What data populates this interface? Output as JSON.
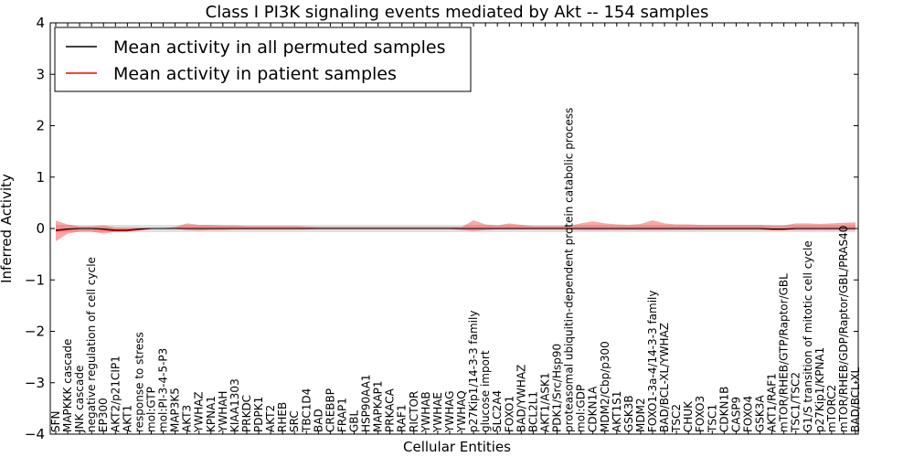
{
  "chart_data": {
    "type": "line",
    "title": "Class I PI3K signaling events mediated by Akt -- 154 samples",
    "xlabel": "Cellular Entities",
    "ylabel": "Inferred Activity",
    "ylim": [
      -4,
      4
    ],
    "yticks": [
      -4,
      -3,
      -2,
      -1,
      0,
      1,
      2,
      3,
      4
    ],
    "grid": false,
    "legend_position": "top-left",
    "categories": [
      "SFN",
      "MAPKKK cascade",
      "JNK cascade",
      "negative regulation of cell cycle",
      "EP300",
      "AKT2/p21CIP1",
      "AKT1",
      "response to stress",
      "mol:GTP",
      "mol:PI-3-4-5-P3",
      "MAP3K5",
      "AKT3",
      "YWHAZ",
      "KPNA1",
      "YWHAH",
      "KIAA1303",
      "PRKDC",
      "PDPK1",
      "AKT2",
      "RHEB",
      "SRC",
      "TBC1D4",
      "BAD",
      "CREBBP",
      "FRAP1",
      "GBL",
      "HSP90AA1",
      "MAPKAP1",
      "PRKACA",
      "RAF1",
      "RICTOR",
      "YWHAB",
      "YWHAE",
      "YWHAG",
      "YWHAQ",
      "p27Kip1/14-3-3 family",
      "glucose import",
      "SLC2A4",
      "FOXO1",
      "BAD/YWHAZ",
      "BCL2L1",
      "AKT1/ASK1",
      "PDK1/Src/Hsp90",
      "proteasomal ubiquitin-dependent protein catabolic process",
      "mol:GDP",
      "CDKN1A",
      "MDM2/Cbp/p300",
      "AKT1S1",
      "GSK3B",
      "MDM2",
      "FOXO1-3a-4/14-3-3 family",
      "BAD/BCL-XL/YWHAZ",
      "TSC2",
      "CHUK",
      "FOXO3",
      "TSC1",
      "CDKN1B",
      "CASP9",
      "FOXO4",
      "GSK3A",
      "AKT1/RAF1",
      "mTOR/RHEB/GTP/Raptor/GBL",
      "TSC1/TSC2",
      "G1/S transition of mitotic cell cycle",
      "p27Kip1/KPNA1",
      "mTORC2",
      "mTOR/RHEB/GDP/Raptor/GBL/PRAS40",
      "BAD/BCL-XL"
    ],
    "series": [
      {
        "name": "Mean activity in all permuted samples",
        "color": "#000000",
        "values": [
          -0.03,
          -0.01,
          0.0,
          0.0,
          -0.01,
          -0.03,
          -0.03,
          -0.01,
          0.0,
          0.0,
          0.0,
          0.0,
          0.0,
          0.0,
          0.0,
          0.0,
          0.0,
          0.0,
          0.0,
          0.0,
          0.0,
          0.0,
          0.0,
          0.0,
          0.0,
          0.0,
          0.0,
          0.0,
          0.0,
          0.0,
          0.0,
          0.0,
          0.0,
          0.0,
          0.0,
          0.0,
          0.0,
          0.0,
          0.0,
          0.0,
          0.0,
          0.0,
          0.0,
          0.0,
          0.0,
          0.0,
          0.0,
          0.0,
          0.0,
          0.0,
          0.0,
          0.0,
          0.0,
          0.0,
          0.0,
          0.0,
          0.0,
          0.0,
          0.0,
          0.0,
          -0.01,
          -0.01,
          0.0,
          0.0,
          0.0,
          0.0,
          0.0,
          0.0
        ],
        "band_low": [
          -0.07,
          -0.07,
          -0.07,
          -0.07,
          -0.07,
          -0.07,
          -0.07,
          -0.07,
          -0.07,
          -0.07,
          -0.07,
          -0.07,
          -0.07,
          -0.07,
          -0.07,
          -0.07,
          -0.07,
          -0.07,
          -0.07,
          -0.07,
          -0.07,
          -0.07,
          -0.07,
          -0.07,
          -0.07,
          -0.07,
          -0.07,
          -0.07,
          -0.07,
          -0.07,
          -0.07,
          -0.07,
          -0.07,
          -0.07,
          -0.07,
          -0.07,
          -0.07,
          -0.07,
          -0.07,
          -0.07,
          -0.07,
          -0.07,
          -0.07,
          -0.07,
          -0.07,
          -0.07,
          -0.07,
          -0.07,
          -0.07,
          -0.07,
          -0.07,
          -0.07,
          -0.07,
          -0.07,
          -0.07,
          -0.07,
          -0.07,
          -0.07,
          -0.07,
          -0.07,
          -0.07,
          -0.07,
          -0.07,
          -0.07,
          -0.07,
          -0.07,
          -0.07,
          -0.07
        ],
        "band_high": [
          0.07,
          0.07,
          0.07,
          0.07,
          0.07,
          0.07,
          0.07,
          0.07,
          0.07,
          0.07,
          0.07,
          0.07,
          0.07,
          0.07,
          0.07,
          0.07,
          0.07,
          0.07,
          0.07,
          0.07,
          0.07,
          0.07,
          0.07,
          0.07,
          0.07,
          0.07,
          0.07,
          0.07,
          0.07,
          0.07,
          0.07,
          0.07,
          0.07,
          0.07,
          0.07,
          0.07,
          0.07,
          0.07,
          0.07,
          0.07,
          0.07,
          0.07,
          0.07,
          0.07,
          0.07,
          0.07,
          0.07,
          0.07,
          0.07,
          0.07,
          0.07,
          0.07,
          0.07,
          0.07,
          0.07,
          0.07,
          0.07,
          0.07,
          0.07,
          0.07,
          0.07,
          0.07,
          0.07,
          0.07,
          0.07,
          0.07,
          0.07,
          0.07
        ]
      },
      {
        "name": "Mean activity in patient samples",
        "color": "#ff0000",
        "values": [
          -0.05,
          -0.02,
          0.0,
          0.0,
          -0.02,
          -0.05,
          -0.05,
          -0.02,
          0.0,
          0.0,
          0.0,
          0.0,
          0.0,
          0.0,
          0.0,
          0.0,
          0.0,
          0.0,
          0.0,
          0.0,
          0.0,
          0.0,
          0.0,
          0.0,
          0.0,
          0.0,
          0.0,
          0.0,
          0.0,
          0.0,
          0.0,
          0.0,
          0.0,
          0.0,
          0.0,
          0.0,
          0.0,
          0.0,
          0.0,
          0.0,
          0.0,
          0.0,
          0.0,
          0.0,
          0.0,
          0.0,
          0.0,
          0.0,
          0.0,
          0.0,
          0.0,
          0.0,
          0.0,
          0.0,
          0.0,
          0.0,
          0.0,
          0.0,
          0.0,
          0.0,
          -0.02,
          -0.02,
          0.0,
          0.0,
          0.0,
          0.0,
          0.0,
          0.0
        ],
        "band_low": [
          -0.25,
          -0.1,
          -0.06,
          -0.06,
          -0.1,
          -0.06,
          -0.04,
          -0.04,
          -0.01,
          -0.01,
          -0.01,
          -0.03,
          -0.04,
          -0.03,
          -0.03,
          -0.02,
          -0.02,
          -0.02,
          -0.02,
          -0.02,
          -0.02,
          -0.02,
          -0.01,
          -0.01,
          -0.01,
          -0.01,
          -0.01,
          -0.01,
          -0.01,
          -0.01,
          -0.01,
          -0.01,
          -0.01,
          -0.01,
          -0.03,
          -0.05,
          -0.03,
          -0.02,
          -0.02,
          -0.02,
          -0.02,
          -0.02,
          -0.02,
          -0.02,
          -0.03,
          -0.03,
          -0.03,
          -0.03,
          -0.03,
          -0.03,
          -0.03,
          -0.03,
          -0.03,
          -0.03,
          -0.03,
          -0.03,
          -0.03,
          -0.03,
          -0.03,
          -0.03,
          -0.03,
          -0.03,
          -0.03,
          -0.03,
          -0.03,
          -0.03,
          -0.03,
          -0.03
        ],
        "band_high": [
          0.15,
          0.08,
          0.04,
          0.04,
          0.06,
          0.02,
          0.02,
          0.02,
          0.01,
          0.01,
          0.03,
          0.1,
          0.07,
          0.07,
          0.06,
          0.06,
          0.05,
          0.05,
          0.05,
          0.05,
          0.05,
          0.04,
          0.03,
          0.03,
          0.03,
          0.03,
          0.03,
          0.03,
          0.03,
          0.03,
          0.03,
          0.03,
          0.03,
          0.03,
          0.03,
          0.16,
          0.08,
          0.06,
          0.1,
          0.07,
          0.05,
          0.05,
          0.05,
          0.05,
          0.1,
          0.14,
          0.1,
          0.08,
          0.07,
          0.09,
          0.16,
          0.1,
          0.08,
          0.08,
          0.07,
          0.07,
          0.07,
          0.07,
          0.07,
          0.07,
          0.06,
          0.06,
          0.1,
          0.1,
          0.09,
          0.1,
          0.11,
          0.12
        ]
      }
    ]
  }
}
